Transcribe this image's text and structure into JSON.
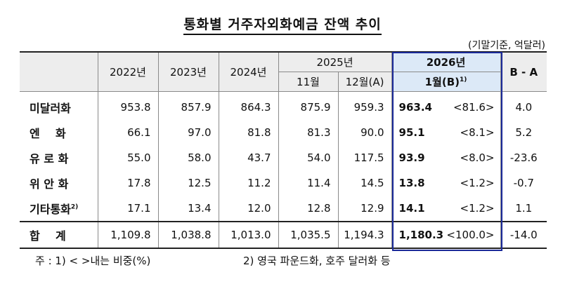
{
  "title": "통화별 거주자외화예금 잔액 추이",
  "unit": "(기말기준, 억달러)",
  "headers": {
    "y2022": "2022년",
    "y2023": "2023년",
    "y2024": "2024년",
    "y2025": "2025년",
    "m11": "11월",
    "m12": "12월(A)",
    "y2026": "2026년",
    "m1": "1월(B)",
    "m1_note": "1)",
    "b_minus_a": "B - A"
  },
  "rows": [
    {
      "label": "미달러화",
      "note": "",
      "v2022": "953.8",
      "v2023": "857.9",
      "v2024": "864.3",
      "v11": "875.9",
      "v12": "959.3",
      "jan": "963.4",
      "share": "<81.6>",
      "diff": "4.0"
    },
    {
      "label": "엔    화",
      "note": "",
      "v2022": "66.1",
      "v2023": "97.0",
      "v2024": "81.8",
      "v11": "81.3",
      "v12": "90.0",
      "jan": "95.1",
      "share": "<8.1>",
      "diff": "5.2"
    },
    {
      "label": "유 로 화",
      "note": "",
      "v2022": "55.0",
      "v2023": "58.0",
      "v2024": "43.7",
      "v11": "54.0",
      "v12": "117.5",
      "jan": "93.9",
      "share": "<8.0>",
      "diff": "-23.6"
    },
    {
      "label": "위 안 화",
      "note": "",
      "v2022": "17.8",
      "v2023": "12.5",
      "v2024": "11.2",
      "v11": "11.4",
      "v12": "14.5",
      "jan": "13.8",
      "share": "<1.2>",
      "diff": "-0.7"
    },
    {
      "label": "기타통화",
      "note": "2)",
      "v2022": "17.1",
      "v2023": "13.4",
      "v2024": "12.0",
      "v11": "12.8",
      "v12": "12.9",
      "jan": "14.1",
      "share": "<1.2>",
      "diff": "1.1"
    }
  ],
  "total": {
    "label": "합    계",
    "v2022": "1,109.8",
    "v2023": "1,038.8",
    "v2024": "1,013.0",
    "v11": "1,035.5",
    "v12": "1,194.3",
    "jan": "1,180.3",
    "share": "<100.0>",
    "diff": "-14.0"
  },
  "notes": {
    "note1": "주 : 1)  <     >내는 비중(%)",
    "note2": "2) 영국 파운드화, 호주 달러화 등"
  }
}
